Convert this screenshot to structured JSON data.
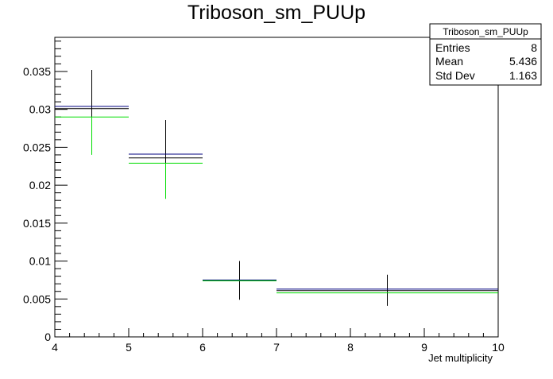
{
  "chart_data": {
    "type": "histogram",
    "title": "Triboson_sm_PUUp",
    "xlabel": "Jet multiplicity",
    "ylabel": "",
    "xlim": [
      4,
      10
    ],
    "ylim": [
      0,
      0.0395
    ],
    "x_ticks": [
      4,
      5,
      6,
      7,
      8,
      9,
      10
    ],
    "y_ticks": [
      0,
      0.005,
      0.01,
      0.015,
      0.02,
      0.025,
      0.03,
      0.035
    ],
    "x_tick_labels": [
      "4",
      "5",
      "6",
      "7",
      "8",
      "9",
      "10"
    ],
    "y_tick_labels": [
      "0",
      "0.005",
      "0.01",
      "0.015",
      "0.02",
      "0.025",
      "0.03",
      "0.035"
    ],
    "grid": false,
    "bins": [
      {
        "x_low": 4,
        "x_high": 5,
        "center": 4.5
      },
      {
        "x_low": 5,
        "x_high": 6,
        "center": 5.5
      },
      {
        "x_low": 6,
        "x_high": 7,
        "center": 6.5
      },
      {
        "x_low": 7,
        "x_high": 10,
        "center": 8.5
      }
    ],
    "series": [
      {
        "color": "#000000",
        "values": [
          0.0301,
          0.0236,
          0.0074,
          0.0061
        ],
        "err_low": [
          0.005,
          0.0049,
          0.0025,
          0.002
        ],
        "err_high": [
          0.0051,
          0.005,
          0.0026,
          0.0021
        ]
      },
      {
        "color": "#00007f",
        "values": [
          0.0304,
          0.0241,
          0.0075,
          0.0063
        ],
        "err_low": [
          0.0,
          0.0,
          0.0,
          0.0
        ],
        "err_high": [
          0.0,
          0.0,
          0.0,
          0.0
        ]
      },
      {
        "color": "#00dd00",
        "values": [
          0.029,
          0.0229,
          0.0074,
          0.0058
        ],
        "err_low": [
          0.005,
          0.0047,
          0.0,
          0.0
        ],
        "err_high": [
          0.0,
          0.0,
          0.0,
          0.0
        ]
      }
    ],
    "stats_box": {
      "title": "Triboson_sm_PUUp",
      "rows": [
        {
          "label": "Entries",
          "value": "8"
        },
        {
          "label": "Mean",
          "value": "5.436"
        },
        {
          "label": "Std Dev",
          "value": "1.163"
        }
      ],
      "position": "top-right"
    }
  }
}
